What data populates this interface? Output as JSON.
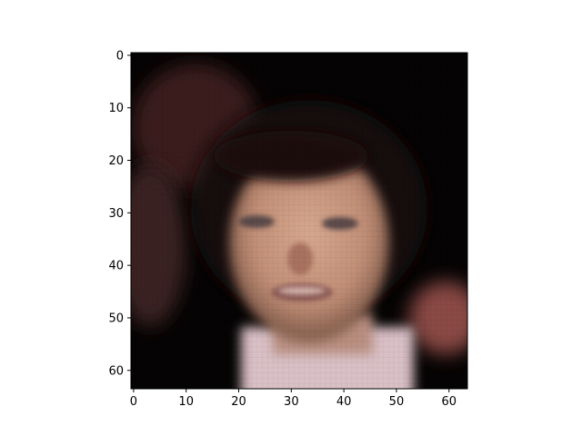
{
  "image": {
    "kind": "generated face (64x64 pixel grid, blurry)",
    "background_color": "#000000"
  },
  "axes": {
    "xlim": [
      -0.5,
      63.5
    ],
    "ylim": [
      63.5,
      -0.5
    ],
    "x_ticks": [
      0,
      10,
      20,
      30,
      40,
      50,
      60
    ],
    "y_ticks": [
      0,
      10,
      20,
      30,
      40,
      50,
      60
    ],
    "x_tick_labels": [
      "0",
      "10",
      "20",
      "30",
      "40",
      "50",
      "60"
    ],
    "y_tick_labels": [
      "0",
      "10",
      "20",
      "30",
      "40",
      "50",
      "60"
    ]
  }
}
